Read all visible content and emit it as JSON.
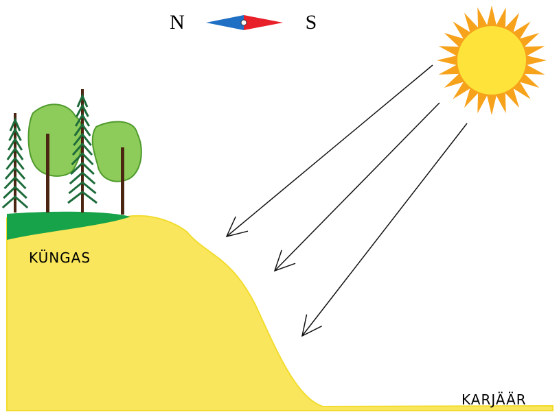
{
  "compass": {
    "north": "N",
    "south": "S"
  },
  "labels": {
    "hill": "KÜNGAS",
    "quarry": "KARJÄÄR"
  }
}
